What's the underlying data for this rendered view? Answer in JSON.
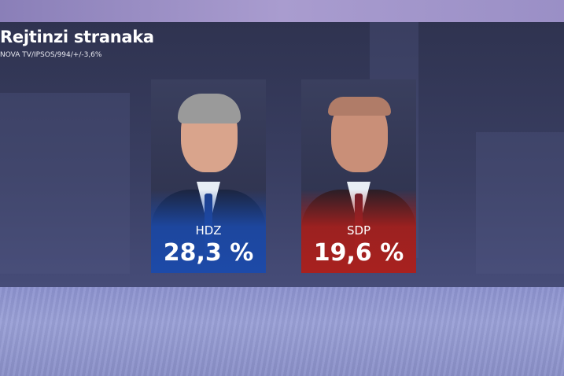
{
  "header": {
    "title": "Rejtinzi stranaka",
    "subtitle": "NOVA TV/IPSOS/994/+/-3,6%"
  },
  "results": [
    {
      "party": "HDZ",
      "value": "28,3 %",
      "color": "#1d4aa8"
    },
    {
      "party": "SDP",
      "value": "19,6 %",
      "color": "#a8211f"
    }
  ]
}
